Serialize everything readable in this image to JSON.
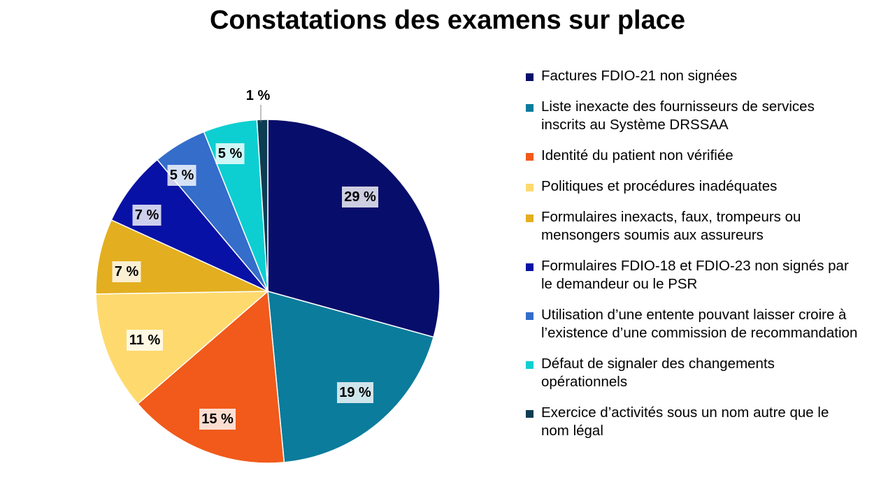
{
  "chart_data": {
    "type": "pie",
    "title": "Constatations des examens sur place",
    "legend_position": "right",
    "slices": [
      {
        "label": "Factures FDIO-21 non signées",
        "value": 29,
        "display": "29 %",
        "color": "#070D6A"
      },
      {
        "label": "Liste inexacte des fournisseurs de services inscrits au Système DRSSAA",
        "value": 19,
        "display": "19 %",
        "color": "#0B7C9C"
      },
      {
        "label": "Identité du patient non vérifiée",
        "value": 15,
        "display": "15 %",
        "color": "#F15A1A"
      },
      {
        "label": "Politiques et procédures inadéquates",
        "value": 11,
        "display": "11 %",
        "color": "#FEDA6E"
      },
      {
        "label": "Formulaires inexacts, faux, trompeurs ou mensongers soumis aux assureurs",
        "value": 7,
        "display": "7 %",
        "color": "#E3AF20"
      },
      {
        "label": "Formulaires FDIO-18 et FDIO-23 non signés par le demandeur ou le PSR",
        "value": 7,
        "display": "7 %",
        "color": "#0811A5"
      },
      {
        "label": "Utilisation d’une entente pouvant laisser croire à l’existence d’une commission de recommandation",
        "value": 5,
        "display": "5 %",
        "color": "#346DCA"
      },
      {
        "label": "Défaut de signaler des changements opérationnels",
        "value": 5,
        "display": "5 %",
        "color": "#0DCFD1"
      },
      {
        "label": "Exercice d’activités sous un nom autre que le nom légal",
        "value": 1,
        "display": "1 %",
        "color": "#0D3D52"
      }
    ]
  }
}
